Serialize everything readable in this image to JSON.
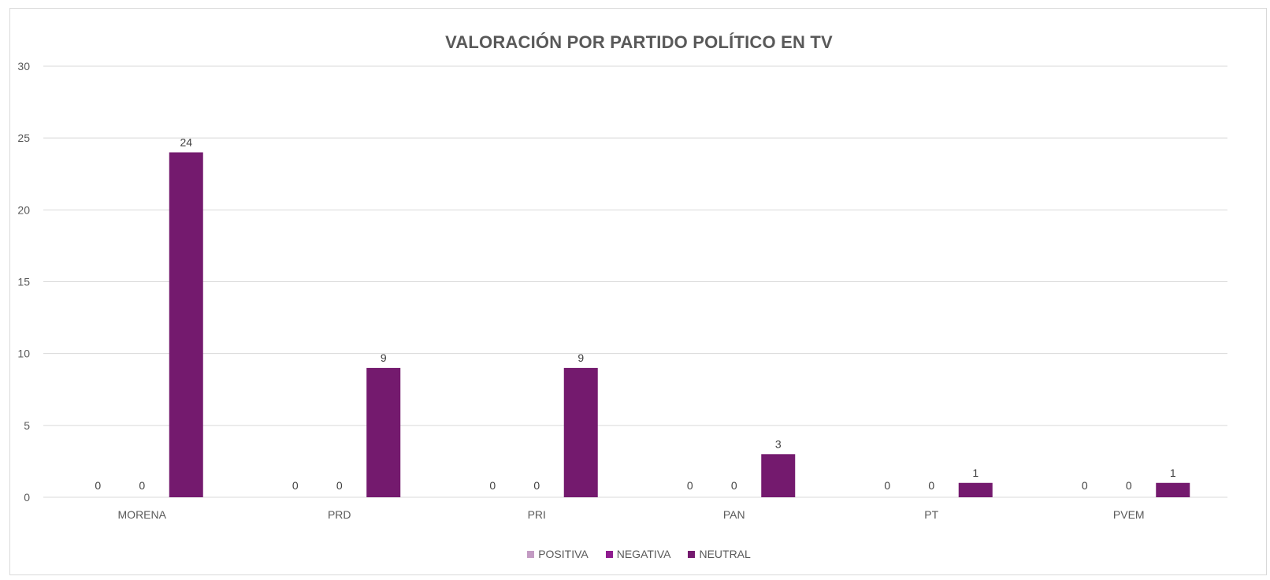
{
  "chart_data": {
    "type": "bar",
    "title": "VALORACIÓN POR PARTIDO POLÍTICO EN TV",
    "categories": [
      "MORENA",
      "PRD",
      "PRI",
      "PAN",
      "PT",
      "PVEM"
    ],
    "series": [
      {
        "name": "POSITIVA",
        "color": "#c39bc3",
        "values": [
          0,
          0,
          0,
          0,
          0,
          0
        ]
      },
      {
        "name": "NEGATIVA",
        "color": "#8f1c8f",
        "values": [
          0,
          0,
          0,
          0,
          0,
          0
        ]
      },
      {
        "name": "NEUTRAL",
        "color": "#741a6e",
        "values": [
          24,
          9,
          9,
          3,
          1,
          1
        ]
      }
    ],
    "ylim": [
      0,
      30
    ],
    "yticks": [
      0,
      5,
      10,
      15,
      20,
      25,
      30
    ],
    "grid": true,
    "legend": "bottom",
    "data_labels": true
  }
}
